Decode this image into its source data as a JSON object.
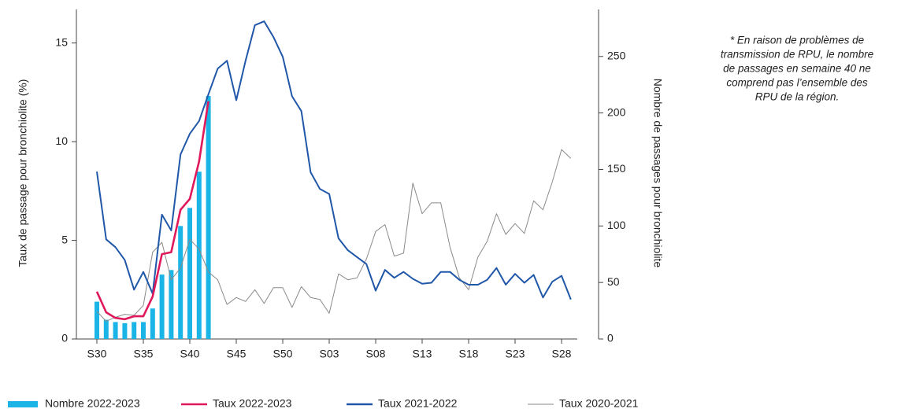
{
  "chart_data": {
    "type": "combo",
    "ylabel": "Taux de passage pour bronchiolite (%)",
    "y2label": "Nombre de passages pour bronchiolite",
    "note": [
      "* En raison de problèmes de",
      "transmission de RPU, le nombre",
      "de passages en semaine 40 ne",
      "comprend pas l’ensemble des",
      "RPU de la région."
    ],
    "categories": [
      "S30",
      null,
      null,
      null,
      null,
      "S35",
      null,
      null,
      null,
      null,
      "S40",
      null,
      null,
      null,
      null,
      "S45",
      null,
      null,
      null,
      null,
      "S50",
      null,
      null,
      null,
      null,
      "S03",
      null,
      null,
      null,
      null,
      "S08",
      null,
      null,
      null,
      null,
      "S13",
      null,
      null,
      null,
      null,
      "S18",
      null,
      null,
      null,
      null,
      "S23",
      null,
      null,
      null,
      null,
      "S28",
      null
    ],
    "ylim": [
      0,
      16.7
    ],
    "yticks": [
      0,
      5,
      10,
      15
    ],
    "y2lim": [
      0,
      291.6
    ],
    "y2ticks": [
      0,
      50,
      100,
      150,
      200,
      250
    ],
    "series": [
      {
        "name": "Nombre 2022-2023",
        "type": "bar",
        "axis": "y2",
        "color": "#1ab4e6",
        "values": [
          33,
          17,
          15,
          14,
          15,
          15,
          27,
          57,
          61,
          100,
          116,
          148,
          215,
          null,
          null,
          null,
          null,
          null,
          null,
          null,
          null,
          null,
          null,
          null,
          null,
          null,
          null,
          null,
          null,
          null,
          null,
          null,
          null,
          null,
          null,
          null,
          null,
          null,
          null,
          null,
          null,
          null,
          null,
          null,
          null,
          null,
          null,
          null,
          null,
          null,
          null,
          null
        ]
      },
      {
        "name": "Taux 2022-2023",
        "type": "line",
        "color": "#e0195a",
        "values": [
          2.4,
          1.35,
          1.07,
          1.0,
          1.15,
          1.15,
          2.15,
          4.3,
          4.4,
          6.55,
          7.1,
          9.0,
          12.05,
          null,
          null,
          null,
          null,
          null,
          null,
          null,
          null,
          null,
          null,
          null,
          null,
          null,
          null,
          null,
          null,
          null,
          null,
          null,
          null,
          null,
          null,
          null,
          null,
          null,
          null,
          null,
          null,
          null,
          null,
          null,
          null,
          null,
          null,
          null,
          null,
          null,
          null,
          null
        ]
      },
      {
        "name": "Taux 2021-2022",
        "type": "line",
        "color": "#2057a8",
        "values": [
          8.48,
          5.05,
          4.65,
          4.0,
          2.5,
          3.4,
          2.3,
          6.3,
          5.5,
          9.35,
          10.4,
          11.05,
          12.4,
          13.7,
          14.1,
          12.1,
          14.1,
          15.9,
          16.1,
          15.3,
          14.3,
          12.3,
          11.55,
          8.45,
          7.6,
          7.35,
          5.1,
          4.5,
          4.15,
          3.8,
          2.45,
          3.5,
          3.1,
          3.4,
          3.05,
          2.8,
          2.85,
          3.4,
          3.4,
          3.0,
          2.75,
          2.75,
          3.0,
          3.6,
          2.75,
          3.3,
          2.85,
          3.25,
          2.1,
          2.9,
          3.2,
          2.0
        ]
      },
      {
        "name": "Taux 2020-2021",
        "type": "line",
        "color": "#8a8a8a",
        "values": [
          1.4,
          0.9,
          1.1,
          1.25,
          1.2,
          1.7,
          4.4,
          4.9,
          3.0,
          3.6,
          5.05,
          4.55,
          3.4,
          3.0,
          1.75,
          2.1,
          1.9,
          2.5,
          1.8,
          2.6,
          2.6,
          1.6,
          2.65,
          2.1,
          2.0,
          1.3,
          3.3,
          3.0,
          3.1,
          4.05,
          5.45,
          5.8,
          4.2,
          4.35,
          7.9,
          6.35,
          6.9,
          6.9,
          4.65,
          3.1,
          2.5,
          4.15,
          4.95,
          6.35,
          5.3,
          5.85,
          5.35,
          7.0,
          6.55,
          7.95,
          9.6,
          9.15
        ]
      }
    ]
  }
}
